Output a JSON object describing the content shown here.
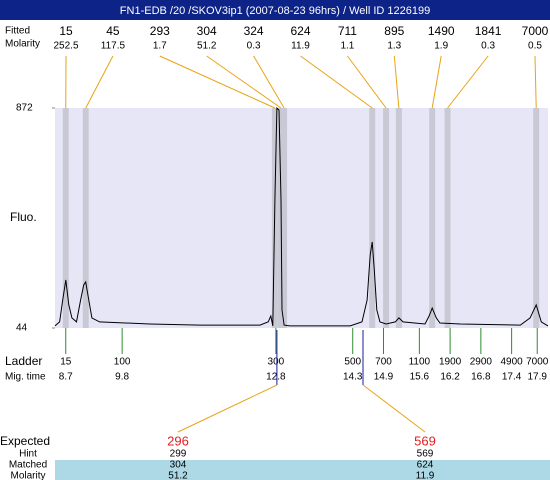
{
  "header": {
    "title": "FN1-EDB /20 /SKOV3ip1 (2007-08-23 96hrs) / Well ID 1226199"
  },
  "chart_data": {
    "type": "line",
    "y_label": "Fluo.",
    "color": "#000000",
    "xlim": [
      8.49,
      18.11
    ],
    "ylim": [
      44,
      872
    ],
    "yticks": [
      44,
      872
    ],
    "x": [
      8.49,
      8.58,
      8.64,
      8.7,
      8.76,
      8.82,
      8.91,
      8.99,
      9.05,
      9.09,
      9.15,
      9.21,
      9.36,
      10.34,
      11.32,
      12.49,
      12.65,
      12.7,
      12.74,
      12.78,
      12.82,
      12.86,
      12.9,
      12.92,
      12.96,
      13.07,
      14.25,
      14.48,
      14.58,
      14.64,
      14.68,
      14.72,
      14.77,
      14.83,
      14.95,
      15.13,
      15.2,
      15.28,
      15.71,
      15.79,
      15.85,
      15.93,
      16.0,
      16.4,
      17.57,
      17.76,
      17.88,
      17.98,
      18.11
    ],
    "values": [
      52,
      67,
      149,
      225,
      131,
      82,
      67,
      149,
      206,
      217,
      149,
      82,
      67,
      59,
      55,
      55,
      67,
      89,
      52,
      526,
      872,
      864,
      526,
      112,
      55,
      52,
      52,
      67,
      149,
      319,
      368,
      262,
      112,
      67,
      59,
      67,
      82,
      67,
      59,
      89,
      119,
      82,
      63,
      59,
      55,
      82,
      131,
      67,
      52
    ],
    "peaks": {
      "row_labels": [
        "Fitted",
        "Molarity"
      ],
      "size": [
        15,
        45,
        293,
        304,
        324,
        624,
        711,
        895,
        1490,
        1841,
        7000
      ],
      "molarity": [
        252.5,
        117.5,
        1.7,
        51.2,
        0.3,
        11.9,
        1.1,
        1.3,
        1.9,
        0.3,
        0.5
      ],
      "mig": [
        8.7,
        9.09,
        12.78,
        12.9,
        12.96,
        14.68,
        14.95,
        15.2,
        15.85,
        16.15,
        17.88
      ]
    },
    "ladder": {
      "row_labels": [
        "Ladder",
        "Mig. time"
      ],
      "size": [
        15,
        100,
        300,
        500,
        700,
        1100,
        1900,
        2900,
        4900,
        7000
      ],
      "mig": [
        8.7,
        9.8,
        12.8,
        14.3,
        14.9,
        15.6,
        16.2,
        16.8,
        17.4,
        17.9
      ]
    },
    "expected": {
      "row_labels": [
        "Expected",
        "Hint",
        "Matched",
        "Molarity"
      ],
      "expected": [
        296,
        569
      ],
      "hint": [
        299,
        569
      ],
      "matched": [
        304,
        624
      ],
      "molarity": [
        51.2,
        11.9
      ],
      "mig": [
        12.82,
        14.5
      ]
    }
  }
}
